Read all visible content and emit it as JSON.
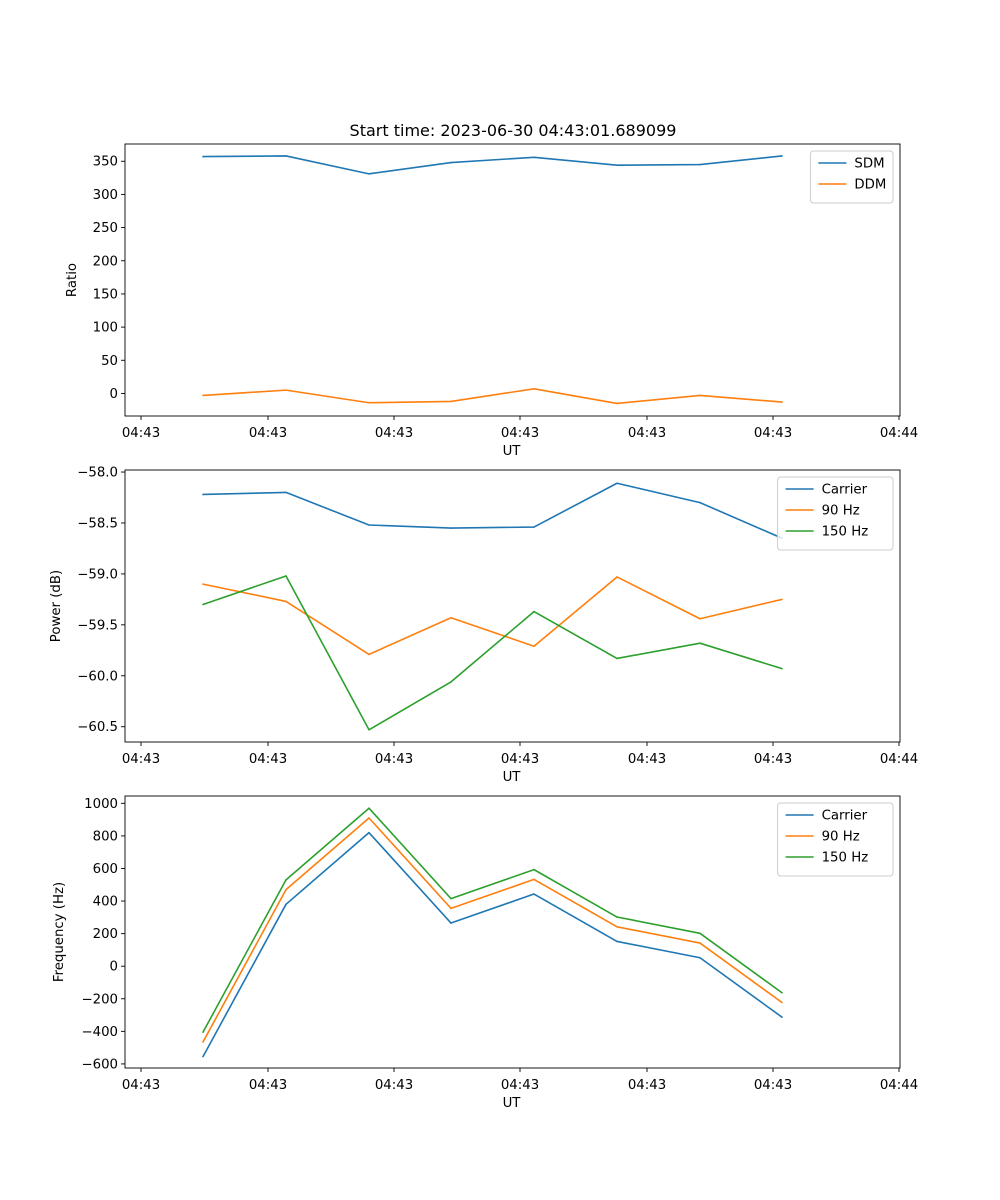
{
  "figure": {
    "title": "Start time: 2023-06-30 04:43:01.689099"
  },
  "chart_data": [
    {
      "type": "line",
      "title": "Start time: 2023-06-30 04:43:01.689099",
      "xlabel": "UT",
      "ylabel": "Ratio",
      "xtick_labels": [
        "04:43",
        "04:43",
        "04:43",
        "04:43",
        "04:43",
        "04:43",
        "04:44"
      ],
      "ylim": [
        -34,
        376
      ],
      "yticks": [
        0,
        50,
        100,
        150,
        200,
        250,
        300,
        350
      ],
      "ytick_labels": [
        "0",
        "50",
        "100",
        "150",
        "200",
        "250",
        "300",
        "350"
      ],
      "legend_position": "top-right",
      "grid": false,
      "series": [
        {
          "name": "SDM",
          "color": "#1f77b4",
          "values": [
            357,
            358,
            331,
            348,
            356,
            344,
            345,
            358
          ]
        },
        {
          "name": "DDM",
          "color": "#ff7f0e",
          "values": [
            -3,
            5,
            -14,
            -12,
            7,
            -15,
            -3,
            -13
          ]
        }
      ]
    },
    {
      "type": "line",
      "xlabel": "UT",
      "ylabel": "Power (dB)",
      "xtick_labels": [
        "04:43",
        "04:43",
        "04:43",
        "04:43",
        "04:43",
        "04:43",
        "04:44"
      ],
      "ylim": [
        -60.65,
        -57.98
      ],
      "yticks": [
        -58.0,
        -58.5,
        -59.0,
        -59.5,
        -60.0,
        -60.5
      ],
      "ytick_labels": [
        "−58.0",
        "−58.5",
        "−59.0",
        "−59.5",
        "−60.0",
        "−60.5"
      ],
      "legend_position": "top-right",
      "grid": false,
      "series": [
        {
          "name": "Carrier",
          "color": "#1f77b4",
          "values": [
            -58.22,
            -58.2,
            -58.52,
            -58.55,
            -58.54,
            -58.11,
            -58.3,
            -58.65
          ]
        },
        {
          "name": "90 Hz",
          "color": "#ff7f0e",
          "values": [
            -59.1,
            -59.27,
            -59.79,
            -59.43,
            -59.71,
            -59.03,
            -59.44,
            -59.25
          ]
        },
        {
          "name": "150 Hz",
          "color": "#2ca02c",
          "values": [
            -59.3,
            -59.02,
            -60.53,
            -60.06,
            -59.37,
            -59.83,
            -59.68,
            -59.93
          ]
        }
      ]
    },
    {
      "type": "line",
      "xlabel": "UT",
      "ylabel": "Frequency (Hz)",
      "xtick_labels": [
        "04:43",
        "04:43",
        "04:43",
        "04:43",
        "04:43",
        "04:43",
        "04:44"
      ],
      "ylim": [
        -625,
        1045
      ],
      "yticks": [
        -600,
        -400,
        -200,
        0,
        200,
        400,
        600,
        800,
        1000
      ],
      "ytick_labels": [
        "−600",
        "−400",
        "−200",
        "0",
        "200",
        "400",
        "600",
        "800",
        "1000"
      ],
      "legend_position": "top-right",
      "grid": false,
      "series": [
        {
          "name": "Carrier",
          "color": "#1f77b4",
          "values": [
            -555,
            380,
            820,
            265,
            443,
            152,
            52,
            -313
          ]
        },
        {
          "name": "90 Hz",
          "color": "#ff7f0e",
          "values": [
            -465,
            470,
            910,
            355,
            533,
            242,
            142,
            -223
          ]
        },
        {
          "name": "150 Hz",
          "color": "#2ca02c",
          "values": [
            -405,
            530,
            970,
            415,
            593,
            302,
            202,
            -163
          ]
        }
      ]
    }
  ]
}
